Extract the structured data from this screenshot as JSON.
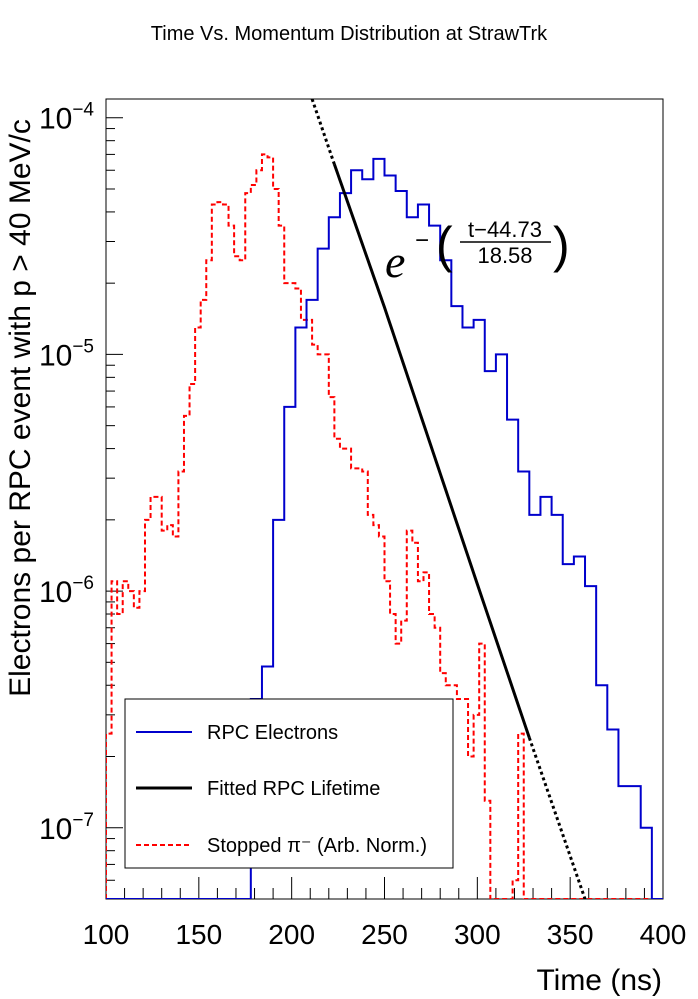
{
  "chart_data": {
    "type": "line",
    "title": "Time Vs. Momentum Distribution at StrawTrk",
    "xlabel": "Time (ns)",
    "ylabel": "Electrons per RPC event with p > 40 MeV/c",
    "xlim": [
      100,
      400
    ],
    "ylim": [
      5e-08,
      0.00012
    ],
    "y_scale": "log",
    "x_ticks": [
      100,
      150,
      200,
      250,
      300,
      350,
      400
    ],
    "y_ticks": [
      {
        "value": 0.0001,
        "base": "10",
        "exp": "−4"
      },
      {
        "value": 1e-05,
        "base": "10",
        "exp": "−5"
      },
      {
        "value": 1e-06,
        "base": "10",
        "exp": "−6"
      },
      {
        "value": 1e-07,
        "base": "10",
        "exp": "−7"
      }
    ],
    "annotation": {
      "base": "e",
      "sign": "−",
      "numerator": "t−44.73",
      "denominator": "18.58"
    },
    "legend_position": "bottom-left",
    "bin_width": 6,
    "series": [
      {
        "name": "RPC Electrons",
        "style": "histogram-solid",
        "color": "#0000cc",
        "x_start": 100,
        "values": [
          5e-08,
          5e-08,
          5e-08,
          5e-08,
          5e-08,
          5e-08,
          5e-08,
          5e-08,
          5e-08,
          5e-08,
          5e-08,
          5e-08,
          5e-08,
          3.5e-07,
          4.8e-07,
          2e-06,
          6e-06,
          1.3e-05,
          1.7e-05,
          2.8e-05,
          3.8e-05,
          4.8e-05,
          6e-05,
          5.5e-05,
          6.7e-05,
          5.7e-05,
          4.9e-05,
          3.8e-05,
          4.3e-05,
          3.5e-05,
          2.5e-05,
          1.6e-05,
          1.3e-05,
          1.4e-05,
          8.5e-06,
          1e-05,
          5.3e-06,
          3.2e-06,
          2.1e-06,
          2.5e-06,
          2.1e-06,
          1.3e-06,
          1.4e-06,
          1.05e-06,
          4e-07,
          2.6e-07,
          1.5e-07,
          1.5e-07,
          1e-07,
          5e-08,
          5e-08,
          5e-08,
          5e-08,
          5e-08,
          5e-08,
          5e-08,
          5e-08,
          5e-08,
          5e-08,
          5e-08,
          5e-08,
          5e-08,
          5e-08,
          5e-08,
          5e-08,
          5e-08,
          5e-08,
          5e-08,
          5e-08,
          5e-08,
          5e-08,
          5e-08,
          5e-08,
          5e-08,
          5e-08,
          5e-08,
          5e-08,
          5e-08,
          5e-08,
          5e-08,
          5e-08,
          5e-08,
          5e-08,
          5e-08,
          5e-08,
          5e-08,
          5e-08,
          5e-08,
          5e-08,
          5e-08,
          5e-08,
          5e-08,
          5e-08,
          5e-08,
          5e-08,
          5e-08,
          5e-08,
          5e-08,
          5e-08,
          5e-08
        ]
      },
      {
        "name": "Fitted RPC Lifetime",
        "style": "line",
        "color": "#000000",
        "model": "exponential",
        "tau": 18.58,
        "t0": 44.73,
        "solid_range": [
          223,
          328
        ],
        "dotted_range": [
          [
            211,
            223
          ],
          [
            328,
            358
          ]
        ],
        "points": [
          [
            211,
            0.00012
          ],
          [
            222,
            6.7e-05
          ],
          [
            250,
            1.58e-05
          ],
          [
            300,
            1.07e-06
          ],
          [
            328,
            2.4e-07
          ],
          [
            358,
            5e-08
          ]
        ]
      },
      {
        "name": "Stopped π⁻ (Arb. Norm.)",
        "style": "histogram-dashed",
        "color": "#ff0000",
        "x_start": 100,
        "bin_width": 3,
        "values": [
          2.5e-07,
          1.1e-06,
          8e-07,
          1.1e-06,
          1e-06,
          8.5e-07,
          1e-06,
          2e-06,
          2.5e-06,
          2.5e-06,
          1.8e-06,
          1.9e-06,
          1.7e-06,
          3.2e-06,
          5.5e-06,
          7.5e-06,
          1.3e-05,
          1.7e-05,
          2.5e-05,
          4.3e-05,
          4.4e-05,
          4.3e-05,
          3.5e-05,
          2.6e-05,
          2.5e-05,
          4.8e-05,
          5.2e-05,
          6e-05,
          7e-05,
          6.8e-05,
          5e-05,
          3.5e-05,
          2e-05,
          2e-05,
          1.9e-05,
          1.4e-05,
          1.4e-05,
          1.1e-05,
          1e-05,
          1e-05,
          6.6e-06,
          4.4e-06,
          4e-06,
          4e-06,
          3.3e-06,
          3.3e-06,
          3.2e-06,
          2.1e-06,
          1.9e-06,
          1.7e-06,
          1.1e-06,
          8e-07,
          6e-07,
          7.5e-07,
          1.8e-06,
          1.6e-06,
          1.1e-06,
          1.2e-06,
          8e-07,
          7e-07,
          4.5e-07,
          4e-07,
          4e-07,
          3.5e-07,
          3.5e-07,
          2e-07,
          3e-07,
          6e-07,
          1.3e-07,
          5e-08,
          5e-08,
          5e-08,
          5e-08,
          6e-08,
          2.5e-07,
          5e-08,
          5e-08,
          5e-08,
          5e-08,
          5e-08,
          5e-08,
          5e-08,
          5e-08,
          5e-08,
          5e-08,
          5e-08,
          5e-08,
          5e-08,
          5e-08,
          5e-08,
          5e-08,
          5e-08,
          5e-08,
          5e-08,
          5e-08,
          5e-08,
          5e-08,
          5e-08,
          5e-08,
          5e-08
        ]
      }
    ]
  }
}
